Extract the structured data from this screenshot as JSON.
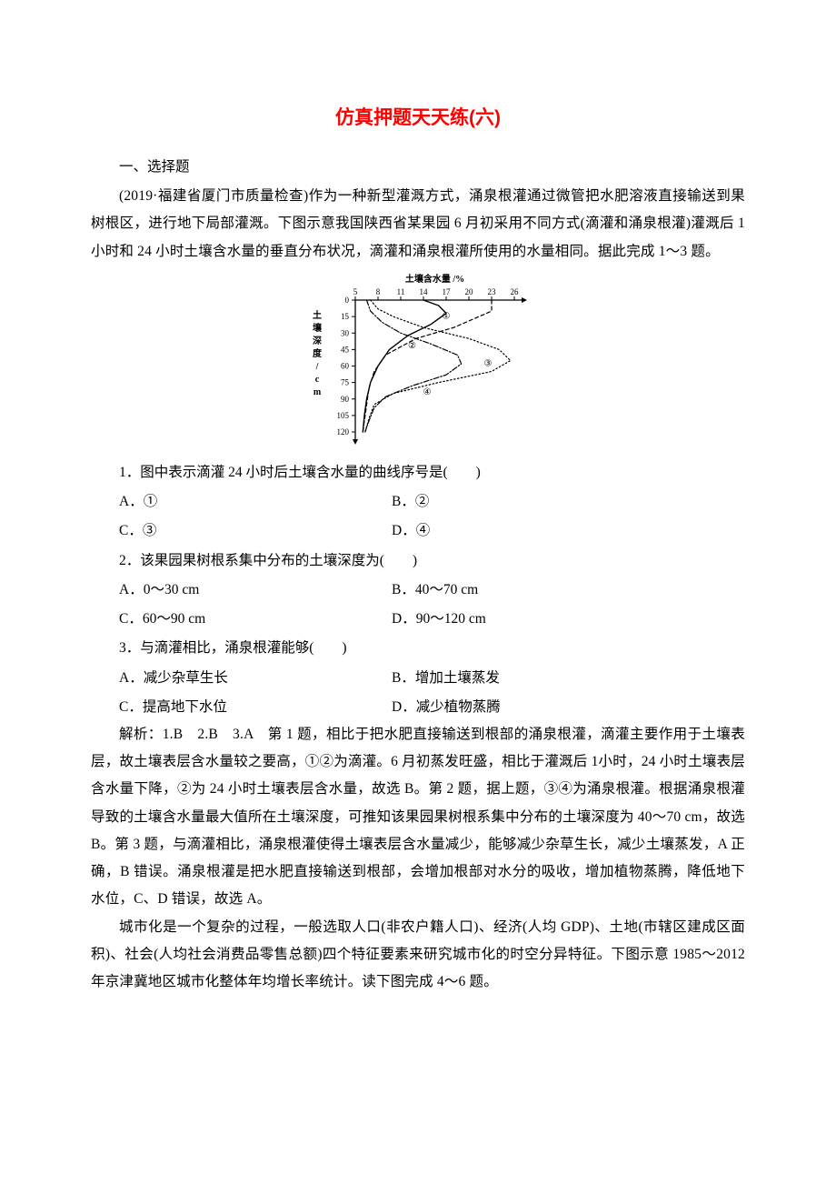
{
  "title": "仿真押题天天练(六)",
  "sections": {
    "s1_label": "一、选择题"
  },
  "passage1": {
    "context": "(2019·福建省厦门市质量检查)作为一种新型灌溉方式，涌泉根灌通过微管把水肥溶液直接输送到果树根区，进行地下局部灌溉。下图示意我国陕西省某果园 6 月初采用不同方式(滴灌和涌泉根灌)灌溉后 1 小时和 24 小时土壤含水量的垂直分布状况，滴灌和涌泉根灌所使用的水量相同。据此完成 1～3 题。"
  },
  "chart": {
    "type": "line",
    "x_label": "土壤含水量 /%",
    "x_ticks": [
      5,
      8,
      11,
      14,
      17,
      20,
      23,
      26
    ],
    "y_label": "土壤深度/cm",
    "y_ticks": [
      0,
      15,
      30,
      45,
      60,
      75,
      90,
      105,
      120
    ],
    "series_labels": [
      "①",
      "②",
      "③",
      "④"
    ],
    "series": [
      {
        "label": "①",
        "dash": "4,3",
        "width": 1.2,
        "points": [
          [
            23,
            0
          ],
          [
            23,
            10
          ],
          [
            18,
            25
          ],
          [
            13,
            35
          ],
          [
            9,
            50
          ],
          [
            7.5,
            65
          ],
          [
            6.8,
            80
          ],
          [
            6.5,
            95
          ],
          [
            6.2,
            110
          ],
          [
            6,
            120
          ]
        ]
      },
      {
        "label": "②",
        "dash": "",
        "width": 1.4,
        "points": [
          [
            14,
            0
          ],
          [
            16,
            5
          ],
          [
            17,
            12
          ],
          [
            15,
            22
          ],
          [
            12,
            32
          ],
          [
            9.5,
            45
          ],
          [
            8,
            60
          ],
          [
            7,
            75
          ],
          [
            6.5,
            90
          ],
          [
            6.2,
            105
          ],
          [
            6,
            120
          ]
        ]
      },
      {
        "label": "③",
        "dash": "1.5,2.5",
        "width": 1.2,
        "points": [
          [
            7,
            0
          ],
          [
            8,
            8
          ],
          [
            10,
            15
          ],
          [
            14,
            25
          ],
          [
            20,
            35
          ],
          [
            24,
            45
          ],
          [
            25.5,
            55
          ],
          [
            23,
            65
          ],
          [
            16,
            75
          ],
          [
            10,
            85
          ],
          [
            7.5,
            95
          ],
          [
            6.8,
            108
          ],
          [
            6.3,
            120
          ]
        ]
      },
      {
        "label": "④",
        "dash": "6,2,1.5,2",
        "width": 1.2,
        "points": [
          [
            6.5,
            0
          ],
          [
            7,
            10
          ],
          [
            8.5,
            20
          ],
          [
            11,
            30
          ],
          [
            15,
            40
          ],
          [
            18.5,
            50
          ],
          [
            19,
            58
          ],
          [
            17,
            68
          ],
          [
            12.5,
            78
          ],
          [
            9,
            88
          ],
          [
            7.5,
            98
          ],
          [
            6.8,
            110
          ],
          [
            6.3,
            120
          ]
        ]
      }
    ],
    "label_positions": {
      "①": [
        17,
        17
      ],
      "②": [
        12.5,
        44
      ],
      "③": [
        22.5,
        60
      ],
      "④": [
        14.5,
        86
      ]
    },
    "colors": {
      "axis": "#000000",
      "line": "#000000",
      "bg": "#ffffff"
    },
    "font_size_ticks": 9,
    "font_size_labels": 10
  },
  "q1": {
    "stem": "1．图中表示滴灌 24 小时后土壤含水量的曲线序号是(　　)",
    "optA": "A．①",
    "optB": "B．②",
    "optC": "C．③",
    "optD": "D．④"
  },
  "q2": {
    "stem": "2．该果园果树根系集中分布的土壤深度为(　　)",
    "optA": "A．0～30 cm",
    "optB": "B．40～70 cm",
    "optC": "C．60～90 cm",
    "optD": "D．90～120 cm"
  },
  "q3": {
    "stem": "3．与滴灌相比，涌泉根灌能够(　　)",
    "optA": "A．减少杂草生长",
    "optB": "B．增加土壤蒸发",
    "optC": "C．提高地下水位",
    "optD": "D．减少植物蒸腾"
  },
  "explain1": "解析：1.B　2.B　3.A　第 1 题，相比于把水肥直接输送到根部的涌泉根灌，滴灌主要作用于土壤表层，故土壤表层含水量较之要高，①②为滴灌。6 月初蒸发旺盛，相比于灌溉后 1小时，24 小时土壤表层含水量下降，②为 24 小时土壤表层含水量，故选 B。第 2 题，据上题，③④为涌泉根灌。根据涌泉根灌导致的土壤含水量最大值所在土壤深度，可推知该果园果树根系集中分布的土壤深度为 40～70 cm，故选 B。第 3 题，与滴灌相比，涌泉根灌使得土壤表层含水量减少，能够减少杂草生长，减少土壤蒸发，A 正确，B 错误。涌泉根灌是把水肥直接输送到根部，会增加根部对水分的吸收，增加植物蒸腾，降低地下水位，C、D 错误，故选 A。",
  "passage2": {
    "context": "城市化是一个复杂的过程，一般选取人口(非农户籍人口)、经济(人均 GDP)、土地(市辖区建成区面积)、社会(人均社会消费品零售总额)四个特征要素来研究城市化的时空分异特征。下图示意 1985～2012 年京津冀地区城市化整体年均增长率统计。读下图完成 4～6 题。"
  }
}
